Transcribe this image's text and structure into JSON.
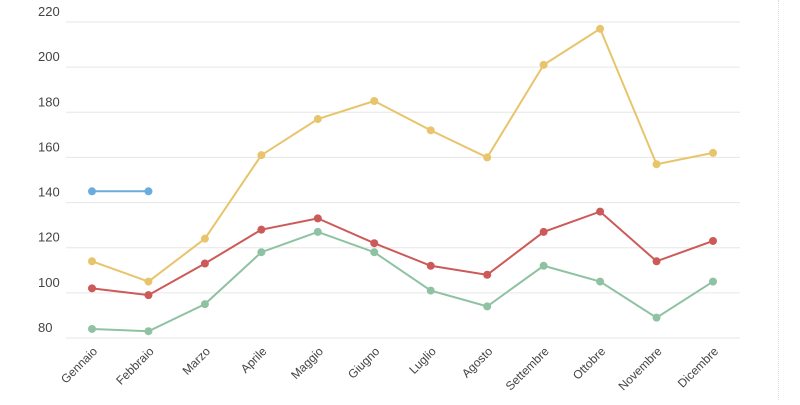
{
  "chart_data": {
    "type": "line",
    "title": "",
    "xlabel": "",
    "ylabel": "",
    "ylim": [
      80,
      220
    ],
    "y_ticks": [
      80,
      100,
      120,
      140,
      160,
      180,
      200,
      220
    ],
    "grid": true,
    "legend": "none",
    "categories": [
      "Gennaio",
      "Febbraio",
      "Marzo",
      "Aprile",
      "Maggio",
      "Giugno",
      "Luglio",
      "Agosto",
      "Settembre",
      "Ottobre",
      "Novembre",
      "Dicembre"
    ],
    "series": [
      {
        "color": "#e8c56c",
        "values": [
          114,
          105,
          124,
          161,
          177,
          185,
          172,
          160,
          201,
          217,
          157,
          162
        ]
      },
      {
        "color": "#cc5a58",
        "values": [
          102,
          99,
          113,
          128,
          133,
          122,
          112,
          108,
          127,
          136,
          114,
          123
        ]
      },
      {
        "color": "#8fc2a2",
        "values": [
          84,
          83,
          95,
          118,
          127,
          118,
          101,
          94,
          112,
          105,
          89,
          105
        ]
      },
      {
        "color": "#6aacdd",
        "values": [
          145,
          145,
          null,
          null,
          null,
          null,
          null,
          null,
          null,
          null,
          null,
          null
        ]
      }
    ]
  }
}
